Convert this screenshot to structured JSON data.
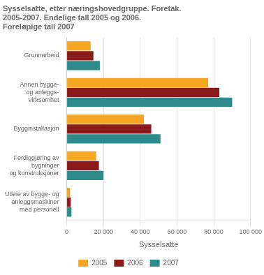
{
  "chart_data": {
    "type": "bar",
    "orientation": "horizontal",
    "title": [
      "Sysselsatte, etter næringshovedgruppe. Foretak.",
      "2005-2007. Endelige tall 2005 og 2006.",
      "Foreløpige tall 2007"
    ],
    "categories": [
      "Grunnarbeid",
      "Annen bygge-\nog anleggs-\nvirksomhet",
      "Bygginstallasjon",
      "Ferdiggjøring av\nbygninger\nog konstruksjoner",
      "Utleie av bygge- og\nanleggsmaskiner\nmed personell"
    ],
    "series": [
      {
        "name": "2005",
        "color": "#F5A623",
        "values": [
          13000,
          77000,
          42000,
          16000,
          1800
        ]
      },
      {
        "name": "2006",
        "color": "#8B1A1A",
        "values": [
          14500,
          83000,
          46000,
          17500,
          2200
        ]
      },
      {
        "name": "2007",
        "color": "#2E8B8B",
        "values": [
          18000,
          90000,
          51000,
          20000,
          2600
        ]
      }
    ],
    "xlabel": "Sysselsatte",
    "xlim": [
      0,
      100000
    ],
    "xticks": [
      0,
      {
        "value": 20000,
        "label": "20 000"
      },
      {
        "value": 40000,
        "label": "40 000"
      },
      {
        "value": 60000,
        "label": "60 000"
      },
      {
        "value": 80000,
        "label": "80 000"
      },
      {
        "value": 100000,
        "label": "100 000"
      }
    ],
    "grid": true,
    "legend": "bottom"
  }
}
